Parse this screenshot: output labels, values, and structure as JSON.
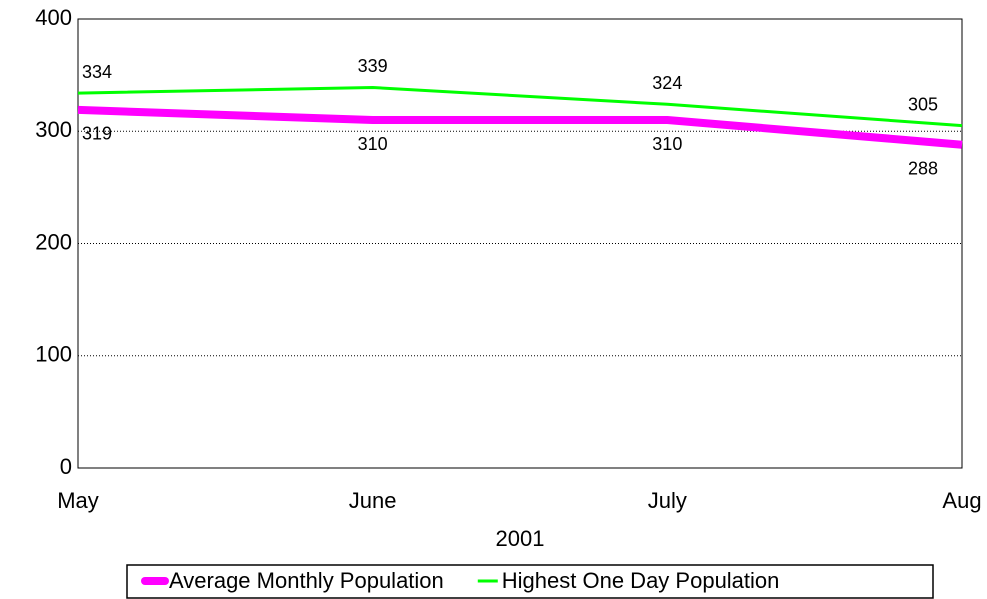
{
  "chart_data": {
    "type": "line",
    "x_label": "2001",
    "categories": [
      "May",
      "June",
      "July",
      "Aug"
    ],
    "series": [
      {
        "name": "Average Monthly Population",
        "color": "#ff00ff",
        "values": [
          319,
          310,
          310,
          288
        ]
      },
      {
        "name": "Highest One Day Population",
        "color": "#00ff00",
        "values": [
          334,
          339,
          324,
          305
        ]
      }
    ],
    "ylim": [
      0,
      400
    ],
    "yticks": [
      0,
      100,
      200,
      300,
      400
    ],
    "grid": true,
    "legend": "bottom"
  }
}
